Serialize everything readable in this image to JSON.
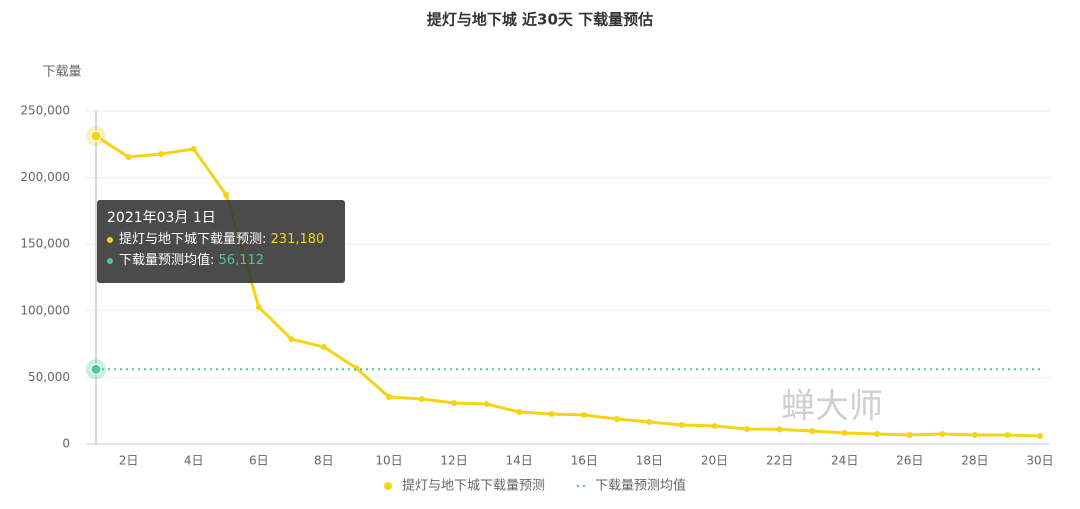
{
  "chart_data": {
    "type": "line",
    "title": "提灯与地下城 近30天 下载量预估",
    "y_label": "下载量",
    "watermark": "蝉大师",
    "categories": [
      null,
      "2日",
      null,
      "4日",
      null,
      "6日",
      null,
      "8日",
      null,
      "10日",
      null,
      "12日",
      null,
      "14日",
      null,
      "16日",
      null,
      "18日",
      null,
      "20日",
      null,
      "22日",
      null,
      "24日",
      null,
      "26日",
      null,
      "28日",
      null,
      "30日"
    ],
    "series": [
      {
        "name": "提灯与地下城下载量预测",
        "color": "#f5d316",
        "style": "solid",
        "values": [
          231180,
          215500,
          217700,
          221500,
          187000,
          102800,
          78800,
          72800,
          57000,
          35300,
          33800,
          30800,
          30000,
          24000,
          22500,
          21800,
          18800,
          16500,
          14300,
          13500,
          11300,
          11000,
          9800,
          8300,
          7500,
          6800,
          7500,
          6800,
          6800,
          6000
        ]
      },
      {
        "name": "下载量预测均值",
        "color": "#4dc7a0",
        "style": "dotted",
        "values": [
          56112,
          56112,
          56112,
          56112,
          56112,
          56112,
          56112,
          56112,
          56112,
          56112,
          56112,
          56112,
          56112,
          56112,
          56112,
          56112,
          56112,
          56112,
          56112,
          56112,
          56112,
          56112,
          56112,
          56112,
          56112,
          56112,
          56112,
          56112,
          56112,
          56112
        ]
      }
    ],
    "ylim": [
      0,
      250000
    ],
    "yticks": [
      0,
      {
        "value": 50000,
        "label": "50,000"
      },
      {
        "value": 100000,
        "label": "100,000"
      },
      {
        "value": 150000,
        "label": "150,000"
      },
      {
        "value": 200000,
        "label": "200,000"
      },
      {
        "value": 250000,
        "label": "250,000"
      }
    ],
    "grid": true,
    "legend": "bottom",
    "tooltip": {
      "title": "2021年03月 1日",
      "value_labels": [
        "231,180",
        "56,112"
      ]
    }
  }
}
